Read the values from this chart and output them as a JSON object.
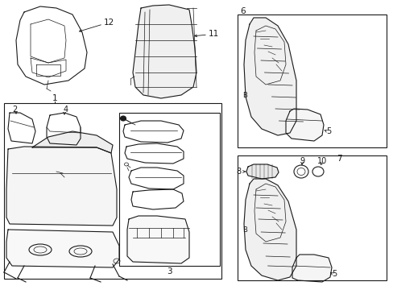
{
  "bg_color": "#ffffff",
  "line_color": "#1a1a1a",
  "fig_w": 4.89,
  "fig_h": 3.6,
  "dpi": 100
}
